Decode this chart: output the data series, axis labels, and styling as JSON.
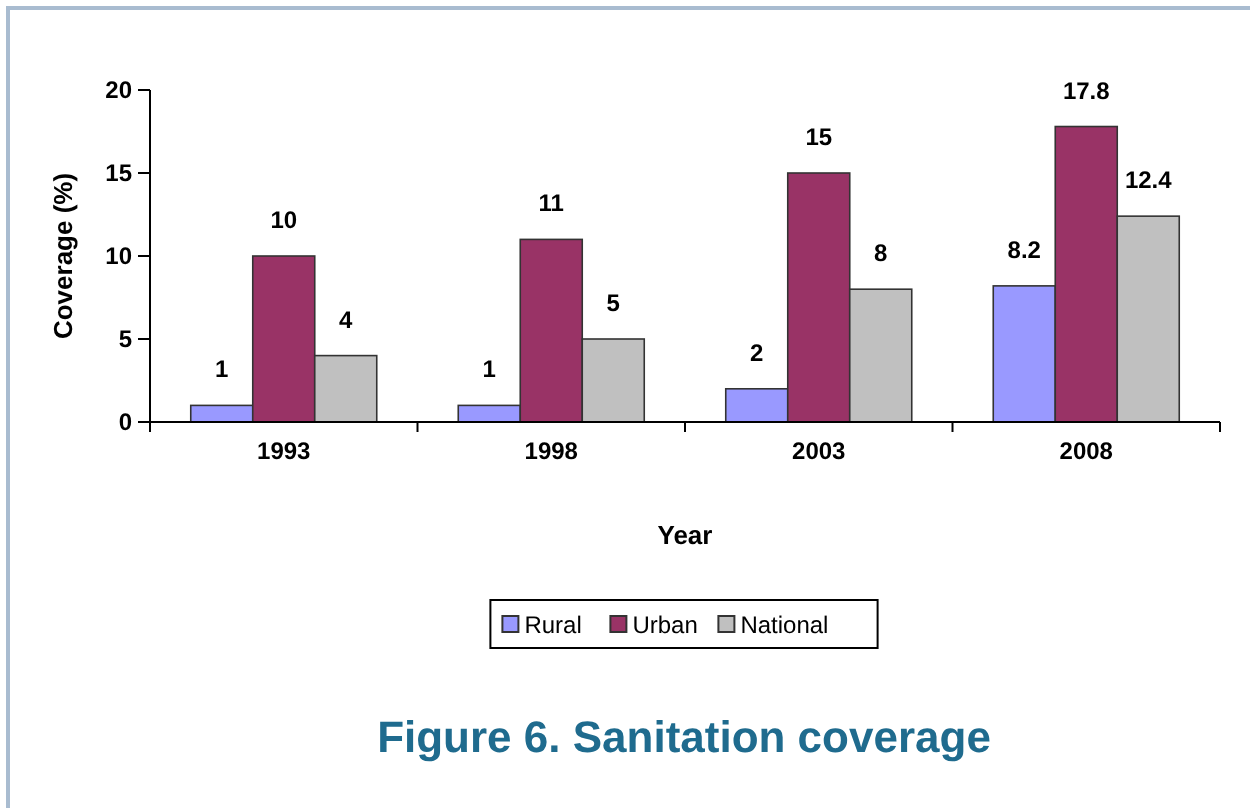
{
  "chart_data": {
    "type": "bar",
    "title": "Figure 6. Sanitation coverage",
    "xlabel": "Year",
    "ylabel": "Coverage (%)",
    "categories": [
      "1993",
      "1998",
      "2003",
      "2008"
    ],
    "series": [
      {
        "name": "Rural",
        "color": "#9999ff",
        "values": [
          1,
          1,
          2,
          8.2
        ]
      },
      {
        "name": "Urban",
        "color": "#993366",
        "values": [
          10,
          11,
          15,
          17.8
        ]
      },
      {
        "name": "National",
        "color": "#c0c0c0",
        "values": [
          4,
          5,
          8,
          12.4
        ]
      }
    ],
    "ylim": [
      0,
      20
    ],
    "yticks": [
      0,
      5,
      10,
      15,
      20
    ],
    "data_labels": true,
    "legend": "bottom",
    "grid": false
  }
}
